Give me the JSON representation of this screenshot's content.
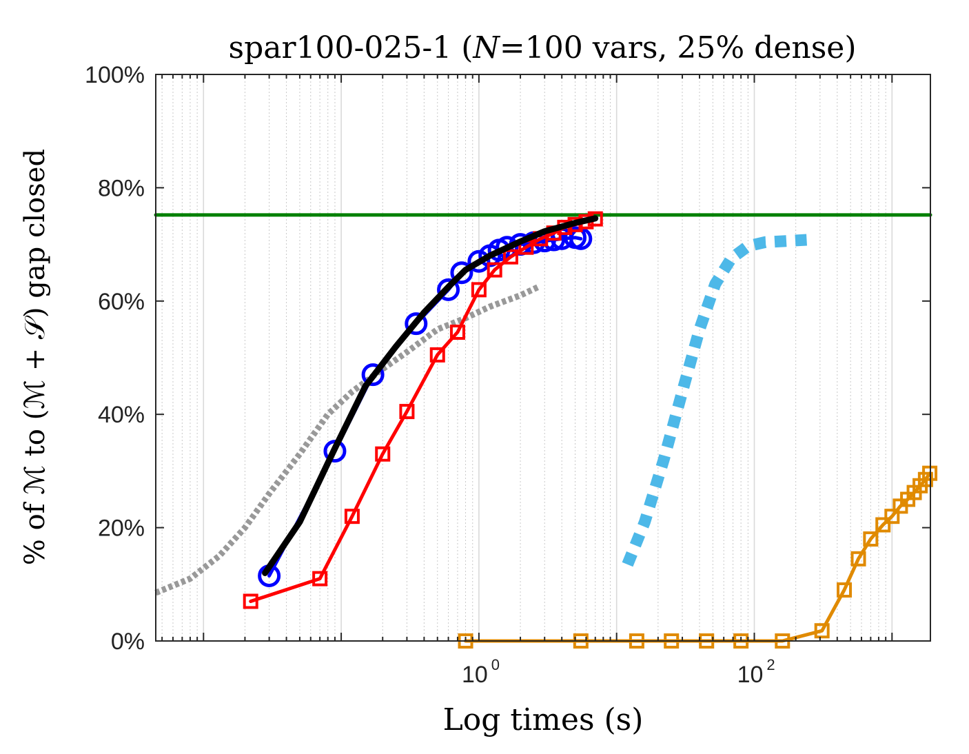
{
  "chart_data": {
    "type": "line",
    "title": "spar100-025-1 (N=100 vars, 25% dense)",
    "xlabel": "Log times (s)",
    "ylabel": "% of ℳ to (ℳ + 𝒮) gap closed",
    "x_scale": "log",
    "xlim": [
      0.0045,
      1900
    ],
    "ylim": [
      0,
      100
    ],
    "x_ticks": [
      {
        "base": "10",
        "exp": "0",
        "value": 1
      },
      {
        "base": "10",
        "exp": "2",
        "value": 100
      }
    ],
    "y_ticks": [
      {
        "label": "0%",
        "value": 0
      },
      {
        "label": "20%",
        "value": 20
      },
      {
        "label": "40%",
        "value": 40
      },
      {
        "label": "60%",
        "value": 60
      },
      {
        "label": "80%",
        "value": 80
      },
      {
        "label": "100%",
        "value": 100
      }
    ],
    "grid": "x-minor",
    "legend": "none",
    "series": [
      {
        "color": "#008000",
        "style": "solid",
        "marker": "none",
        "points": [
          [
            0.0045,
            75.2
          ],
          [
            1900,
            75.2
          ]
        ]
      },
      {
        "color": "#999999",
        "style": "dotted",
        "marker": "none",
        "points": [
          [
            0.0045,
            8.5
          ],
          [
            0.008,
            11
          ],
          [
            0.013,
            15
          ],
          [
            0.02,
            20
          ],
          [
            0.03,
            26
          ],
          [
            0.05,
            33
          ],
          [
            0.08,
            40
          ],
          [
            0.12,
            44
          ],
          [
            0.2,
            48
          ],
          [
            0.3,
            51
          ],
          [
            0.5,
            55
          ],
          [
            0.8,
            57
          ],
          [
            1.2,
            59
          ],
          [
            2.0,
            61
          ],
          [
            2.7,
            62.5
          ]
        ]
      },
      {
        "color": "#0000ff",
        "style": "solid",
        "marker": "circle",
        "points": [
          [
            0.03,
            11.5
          ],
          [
            0.09,
            33.5
          ],
          [
            0.17,
            47
          ],
          [
            0.35,
            56
          ],
          [
            0.6,
            62
          ],
          [
            0.75,
            65
          ],
          [
            1.0,
            67
          ],
          [
            1.2,
            68
          ],
          [
            1.4,
            69
          ],
          [
            1.6,
            69.5
          ],
          [
            2.0,
            70
          ],
          [
            2.5,
            70.3
          ],
          [
            3.0,
            70.6
          ],
          [
            3.5,
            70.8
          ],
          [
            4.0,
            71
          ],
          [
            5.0,
            71.2
          ],
          [
            5.5,
            71
          ]
        ]
      },
      {
        "color": "#ff0000",
        "style": "solid",
        "marker": "square",
        "points": [
          [
            0.022,
            7
          ],
          [
            0.07,
            11
          ],
          [
            0.12,
            22
          ],
          [
            0.2,
            33
          ],
          [
            0.3,
            40.5
          ],
          [
            0.5,
            50.5
          ],
          [
            0.7,
            54.5
          ],
          [
            1.0,
            62
          ],
          [
            1.3,
            65.5
          ],
          [
            1.7,
            67.8
          ],
          [
            2.2,
            69.5
          ],
          [
            2.8,
            71
          ],
          [
            3.5,
            72
          ],
          [
            4.2,
            73
          ],
          [
            5.0,
            73.5
          ],
          [
            6.0,
            74
          ],
          [
            7.0,
            74.5
          ]
        ]
      },
      {
        "color": "#000000",
        "style": "solid",
        "marker": "none",
        "points": [
          [
            0.028,
            12
          ],
          [
            0.05,
            21
          ],
          [
            0.09,
            34
          ],
          [
            0.15,
            45
          ],
          [
            0.25,
            52
          ],
          [
            0.4,
            58
          ],
          [
            0.6,
            62.5
          ],
          [
            0.8,
            65.5
          ],
          [
            1.2,
            68
          ],
          [
            2.0,
            70.5
          ],
          [
            3.0,
            72.3
          ],
          [
            5.0,
            73.8
          ],
          [
            7.0,
            74.6
          ]
        ]
      },
      {
        "color": "#4db8e8",
        "style": "dotted",
        "marker": "none",
        "points": [
          [
            12,
            13.5
          ],
          [
            16,
            21
          ],
          [
            22,
            32
          ],
          [
            30,
            44
          ],
          [
            40,
            55
          ],
          [
            52,
            63
          ],
          [
            68,
            67.5
          ],
          [
            90,
            69.7
          ],
          [
            120,
            70.4
          ],
          [
            170,
            70.6
          ],
          [
            240,
            70.8
          ]
        ]
      },
      {
        "color": "#e08a00",
        "style": "solid",
        "marker": "square",
        "points": [
          [
            0.8,
            0
          ],
          [
            5.5,
            0
          ],
          [
            14,
            0
          ],
          [
            25,
            0
          ],
          [
            45,
            0
          ],
          [
            80,
            0
          ],
          [
            160,
            0
          ],
          [
            310,
            1.8
          ],
          [
            450,
            9
          ],
          [
            570,
            14.5
          ],
          [
            700,
            18
          ],
          [
            860,
            20.5
          ],
          [
            1000,
            22
          ],
          [
            1150,
            23.8
          ],
          [
            1300,
            25
          ],
          [
            1450,
            26.2
          ],
          [
            1600,
            27.4
          ],
          [
            1750,
            28.5
          ],
          [
            1880,
            29.6
          ]
        ]
      }
    ]
  }
}
